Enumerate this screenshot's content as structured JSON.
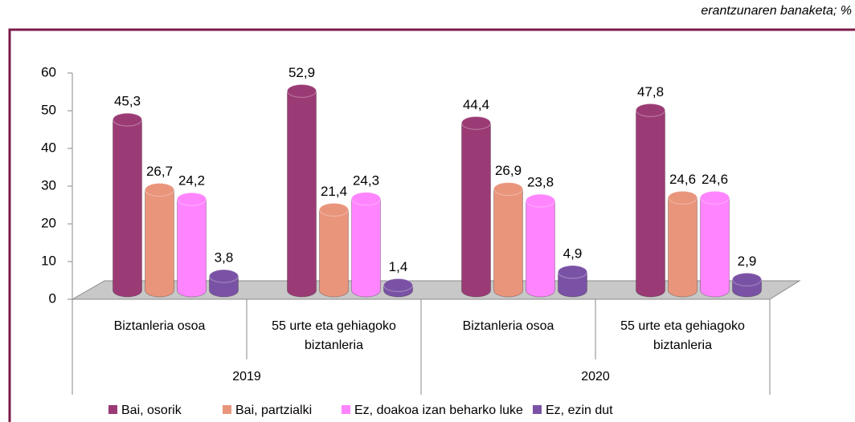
{
  "chart_data": {
    "type": "bar",
    "subtitle": "erantzunaren banaketa; %",
    "categories": [
      "Biztanleria osoa",
      "55 urte eta gehiagoko biztanleria",
      "Biztanleria osoa",
      "55 urte eta gehiagoko biztanleria"
    ],
    "category_groups": [
      "2019",
      "2020"
    ],
    "series": [
      {
        "name": "Bai, osorik",
        "color": "#9b3b75",
        "values": [
          45.3,
          52.9,
          44.4,
          47.8
        ],
        "value_labels": [
          "45,3",
          "52,9",
          "44,4",
          "47,8"
        ]
      },
      {
        "name": "Bai, partzialki",
        "color": "#e9957c",
        "values": [
          26.7,
          21.4,
          26.9,
          24.6
        ],
        "value_labels": [
          "26,7",
          "21,4",
          "26,9",
          "24,6"
        ]
      },
      {
        "name": "Ez, doakoa izan beharko luke",
        "color": "#ff85ff",
        "values": [
          24.2,
          24.3,
          23.8,
          24.6
        ],
        "value_labels": [
          "24,2",
          "24,3",
          "23,8",
          "24,6"
        ]
      },
      {
        "name": "Ez, ezin dut",
        "color": "#7a52a5",
        "values": [
          3.8,
          1.4,
          4.9,
          2.9
        ],
        "value_labels": [
          "3,8",
          "1,4",
          "4,9",
          "2,9"
        ]
      }
    ],
    "ylim": [
      0,
      60
    ],
    "yticks": [
      0,
      10,
      20,
      30,
      40,
      50,
      60
    ],
    "legend": "bottom"
  }
}
